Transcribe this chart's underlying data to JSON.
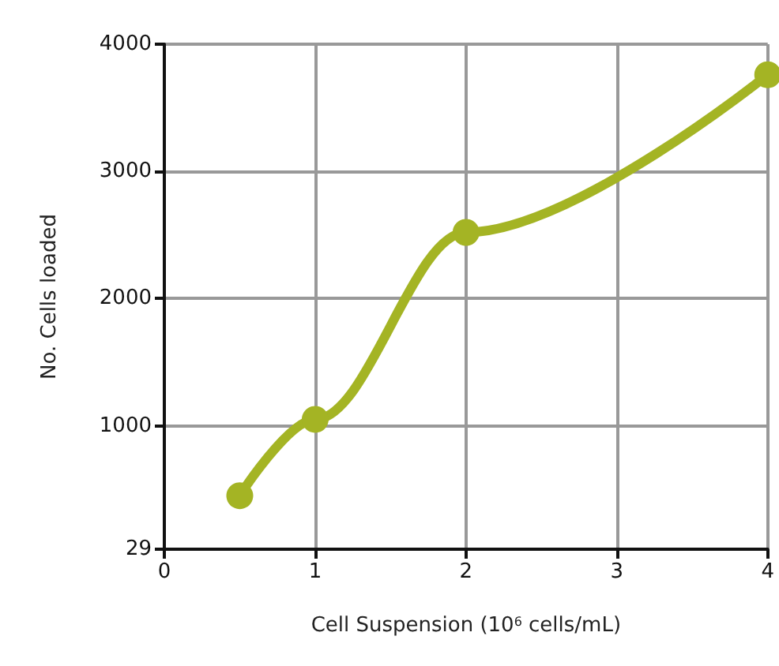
{
  "chart_data": {
    "type": "line",
    "xlabel": "Cell Suspension (10$^{6}$ cells/mL)",
    "ylabel": "No. Cells loaded",
    "x": [
      0.5,
      1,
      2,
      4
    ],
    "series": [
      {
        "color": "#a4b424",
        "values": [
          450,
          1050,
          2520,
          3760
        ]
      }
    ],
    "xlim": [
      0,
      4
    ],
    "xticks": [
      0,
      1,
      2,
      3,
      4
    ],
    "ylim": [
      29,
      4000
    ],
    "yticks": [
      29,
      1000,
      2000,
      3000,
      4000
    ],
    "grid": true,
    "marker": "circle",
    "line_style": "solid"
  }
}
